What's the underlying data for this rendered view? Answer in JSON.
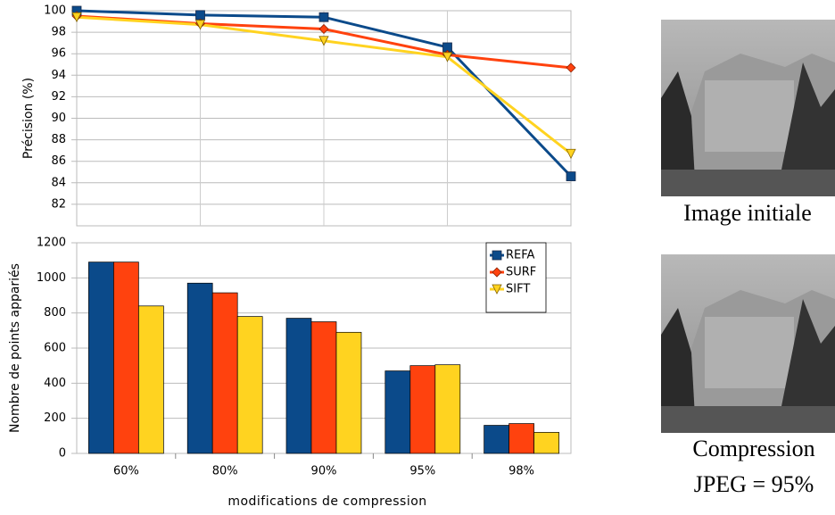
{
  "chart_data": [
    {
      "type": "line",
      "ylabel": "Précision (%)",
      "ylim": [
        80,
        100
      ],
      "yticks": [
        82,
        84,
        86,
        88,
        90,
        92,
        94,
        96,
        98,
        100
      ],
      "grid": true,
      "series": [
        {
          "name": "REFA",
          "color": "#0b4a8a",
          "marker": "square",
          "values": [
            100,
            99.6,
            99.4,
            96.6,
            84.6
          ]
        },
        {
          "name": "SURF",
          "color": "#ff420e",
          "marker": "diamond",
          "values": [
            99.5,
            98.8,
            98.3,
            95.9,
            94.7
          ]
        },
        {
          "name": "SIFT",
          "color": "#ffd320",
          "marker": "triangle-down",
          "values": [
            99.4,
            98.7,
            97.2,
            95.7,
            86.7
          ]
        }
      ]
    },
    {
      "type": "bar",
      "xlabel": "modifications de compression",
      "ylabel": "Nombre de points appariés",
      "categories": [
        "60%",
        "80%",
        "90%",
        "95%",
        "98%"
      ],
      "ylim": [
        0,
        1200
      ],
      "yticks": [
        0,
        200,
        400,
        600,
        800,
        1000,
        1200
      ],
      "grid": true,
      "legend": "top-right",
      "series": [
        {
          "name": "REFA",
          "color": "#0b4a8a",
          "marker": "square",
          "values": [
            1090,
            970,
            770,
            470,
            160
          ]
        },
        {
          "name": "SURF",
          "color": "#ff420e",
          "marker": "diamond",
          "values": [
            1090,
            915,
            750,
            500,
            170
          ]
        },
        {
          "name": "SIFT",
          "color": "#ffd320",
          "marker": "triangle-down",
          "values": [
            840,
            780,
            690,
            505,
            120
          ]
        }
      ]
    }
  ],
  "images": [
    {
      "caption": [
        "Image initiale"
      ]
    },
    {
      "caption": [
        "Compression",
        "JPEG = 95%"
      ]
    }
  ]
}
